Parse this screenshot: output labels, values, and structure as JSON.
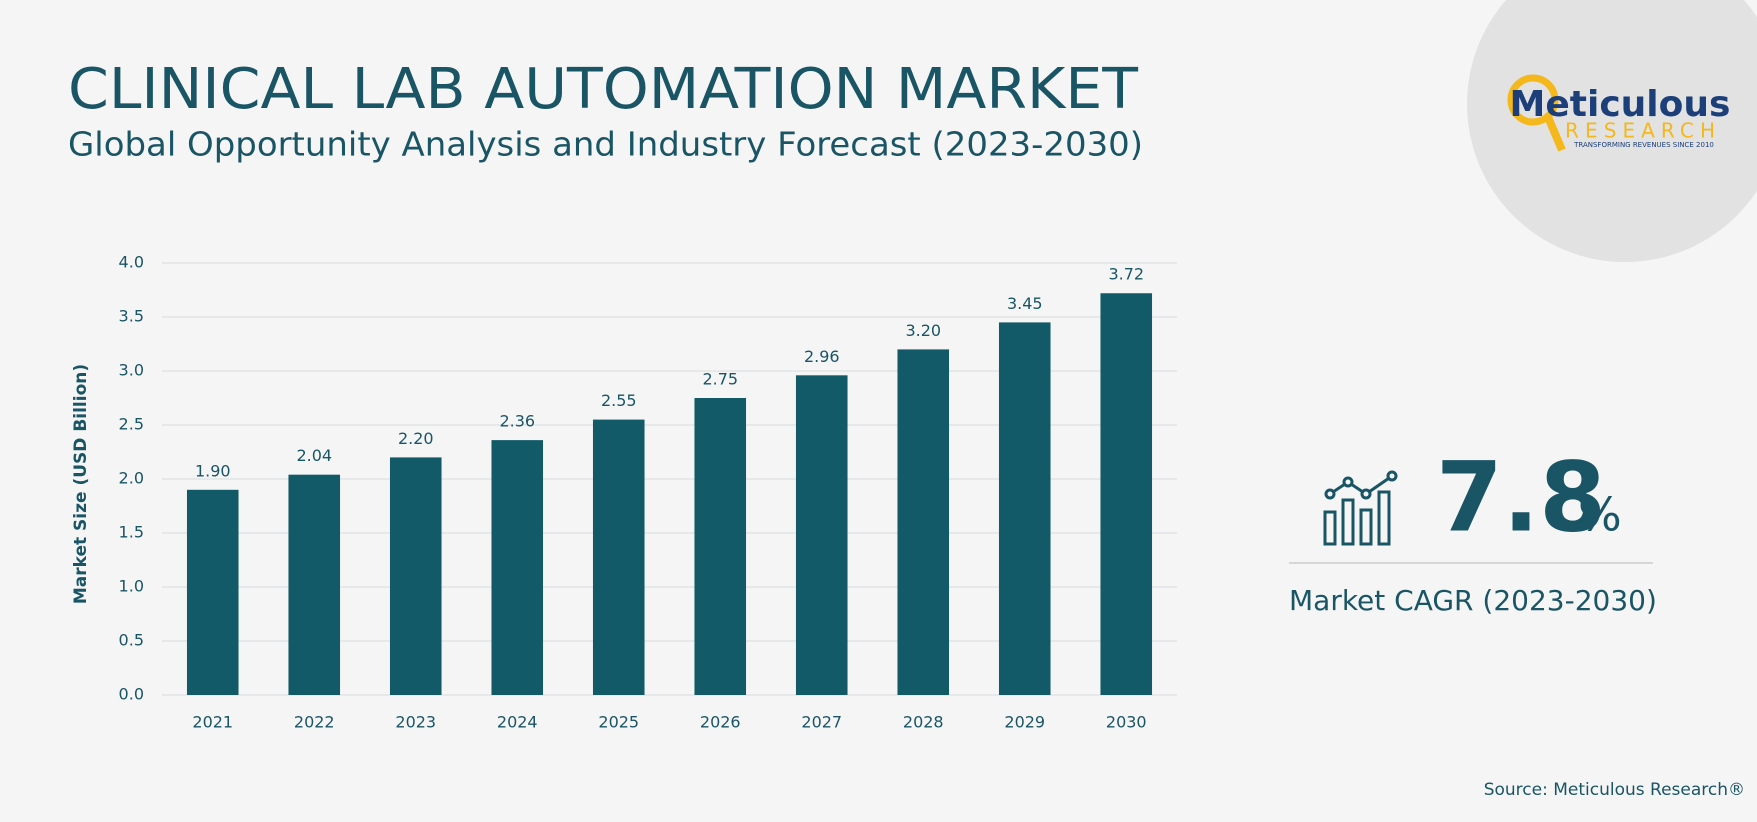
{
  "chart_data": {
    "type": "bar",
    "title": "CLINICAL LAB AUTOMATION MARKET",
    "subtitle": "Global Opportunity Analysis and Industry Forecast (2023-2030)",
    "ylabel": "Market Size (USD Billion)",
    "categories": [
      "2021",
      "2022",
      "2023",
      "2024",
      "2025",
      "2026",
      "2027",
      "2028",
      "2029",
      "2030"
    ],
    "values": [
      1.9,
      2.04,
      2.2,
      2.36,
      2.55,
      2.75,
      2.96,
      3.2,
      3.45,
      3.72
    ],
    "value_labels": [
      "1.90",
      "2.04",
      "2.20",
      "2.36",
      "2.55",
      "2.75",
      "2.96",
      "3.20",
      "3.45",
      "3.72"
    ],
    "color": "#125a68",
    "ylim": [
      0,
      4
    ],
    "yticks": [
      {
        "value": 0,
        "label": "0.0"
      },
      0.5,
      {
        "value": 1,
        "label": "1.0"
      },
      1.5,
      {
        "value": 2,
        "label": "2.0"
      },
      2.5,
      {
        "value": 3,
        "label": "3.0"
      },
      3.5,
      {
        "value": 4,
        "label": "4.0"
      }
    ],
    "grid": true,
    "cagr": {
      "value": 7.8,
      "symbol": "%",
      "label": "Market CAGR (2023-2030)"
    },
    "logo": {
      "name": "Meticulous",
      "sub": "RESEARCH",
      "tagline": "TRANSFORMING REVENUES SINCE 2010"
    },
    "source": "Source: Meticulous Research®"
  }
}
